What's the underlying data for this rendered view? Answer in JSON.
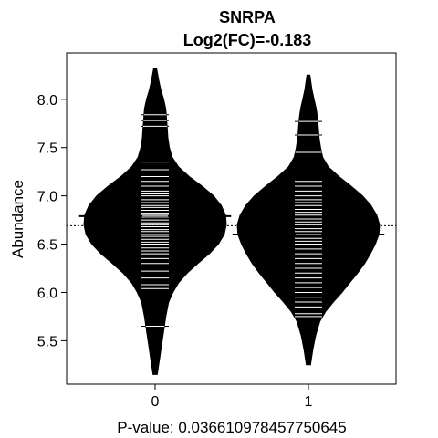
{
  "chart_data": {
    "type": "beanplot",
    "title": "SNRPA",
    "subtitle": "Log2(FC)=-0.183",
    "xlabel": "P-value: 0.036610978457750645",
    "ylabel": "Abundance",
    "categories": [
      "0",
      "1"
    ],
    "ylim": [
      5.05,
      8.48
    ],
    "yticks": [
      5.5,
      6.0,
      6.5,
      7.0,
      7.5,
      8.0
    ],
    "ytick_labels": [
      "5.5",
      "6.0",
      "6.5",
      "7.0",
      "7.5",
      "8.0"
    ],
    "overall_mean": 6.69,
    "grid": false,
    "legend": "none",
    "series": [
      {
        "category": "0",
        "mean": 6.79,
        "range": [
          5.15,
          8.32
        ],
        "density": [
          [
            5.15,
            0.03
          ],
          [
            5.3,
            0.06
          ],
          [
            5.45,
            0.09
          ],
          [
            5.6,
            0.12
          ],
          [
            5.75,
            0.15
          ],
          [
            5.9,
            0.19
          ],
          [
            6.0,
            0.25
          ],
          [
            6.1,
            0.33
          ],
          [
            6.2,
            0.45
          ],
          [
            6.3,
            0.6
          ],
          [
            6.4,
            0.76
          ],
          [
            6.5,
            0.89
          ],
          [
            6.6,
            0.97
          ],
          [
            6.7,
            1.0
          ],
          [
            6.8,
            0.99
          ],
          [
            6.9,
            0.93
          ],
          [
            7.0,
            0.82
          ],
          [
            7.1,
            0.66
          ],
          [
            7.2,
            0.48
          ],
          [
            7.3,
            0.33
          ],
          [
            7.4,
            0.24
          ],
          [
            7.5,
            0.2
          ],
          [
            7.6,
            0.18
          ],
          [
            7.7,
            0.17
          ],
          [
            7.8,
            0.16
          ],
          [
            7.9,
            0.15
          ],
          [
            8.0,
            0.12
          ],
          [
            8.1,
            0.08
          ],
          [
            8.2,
            0.05
          ],
          [
            8.32,
            0.02
          ]
        ],
        "points": [
          5.65,
          6.04,
          6.08,
          6.15,
          6.22,
          6.3,
          6.35,
          6.4,
          6.43,
          6.46,
          6.5,
          6.52,
          6.55,
          6.58,
          6.6,
          6.63,
          6.65,
          6.68,
          6.7,
          6.72,
          6.75,
          6.78,
          6.8,
          6.82,
          6.85,
          6.88,
          6.9,
          6.93,
          6.96,
          7.0,
          7.02,
          7.05,
          7.1,
          7.15,
          7.2,
          7.27,
          7.35,
          7.72,
          7.78,
          7.84
        ]
      },
      {
        "category": "1",
        "mean": 6.6,
        "range": [
          5.25,
          8.25
        ],
        "density": [
          [
            5.25,
            0.03
          ],
          [
            5.4,
            0.06
          ],
          [
            5.55,
            0.1
          ],
          [
            5.7,
            0.16
          ],
          [
            5.8,
            0.24
          ],
          [
            5.9,
            0.35
          ],
          [
            6.0,
            0.47
          ],
          [
            6.1,
            0.58
          ],
          [
            6.2,
            0.69
          ],
          [
            6.3,
            0.79
          ],
          [
            6.4,
            0.87
          ],
          [
            6.5,
            0.94
          ],
          [
            6.6,
            0.99
          ],
          [
            6.7,
            1.0
          ],
          [
            6.8,
            0.96
          ],
          [
            6.9,
            0.88
          ],
          [
            7.0,
            0.76
          ],
          [
            7.1,
            0.6
          ],
          [
            7.2,
            0.43
          ],
          [
            7.3,
            0.28
          ],
          [
            7.4,
            0.2
          ],
          [
            7.5,
            0.17
          ],
          [
            7.6,
            0.15
          ],
          [
            7.7,
            0.14
          ],
          [
            7.8,
            0.13
          ],
          [
            7.9,
            0.11
          ],
          [
            8.0,
            0.08
          ],
          [
            8.1,
            0.05
          ],
          [
            8.25,
            0.02
          ]
        ],
        "points": [
          5.75,
          5.78,
          5.85,
          5.9,
          5.95,
          6.0,
          6.05,
          6.1,
          6.15,
          6.2,
          6.25,
          6.3,
          6.35,
          6.4,
          6.45,
          6.5,
          6.53,
          6.56,
          6.6,
          6.63,
          6.66,
          6.7,
          6.73,
          6.76,
          6.8,
          6.83,
          6.86,
          6.9,
          6.93,
          6.96,
          7.0,
          7.05,
          7.1,
          7.15,
          7.45,
          7.63,
          7.77
        ]
      }
    ]
  }
}
